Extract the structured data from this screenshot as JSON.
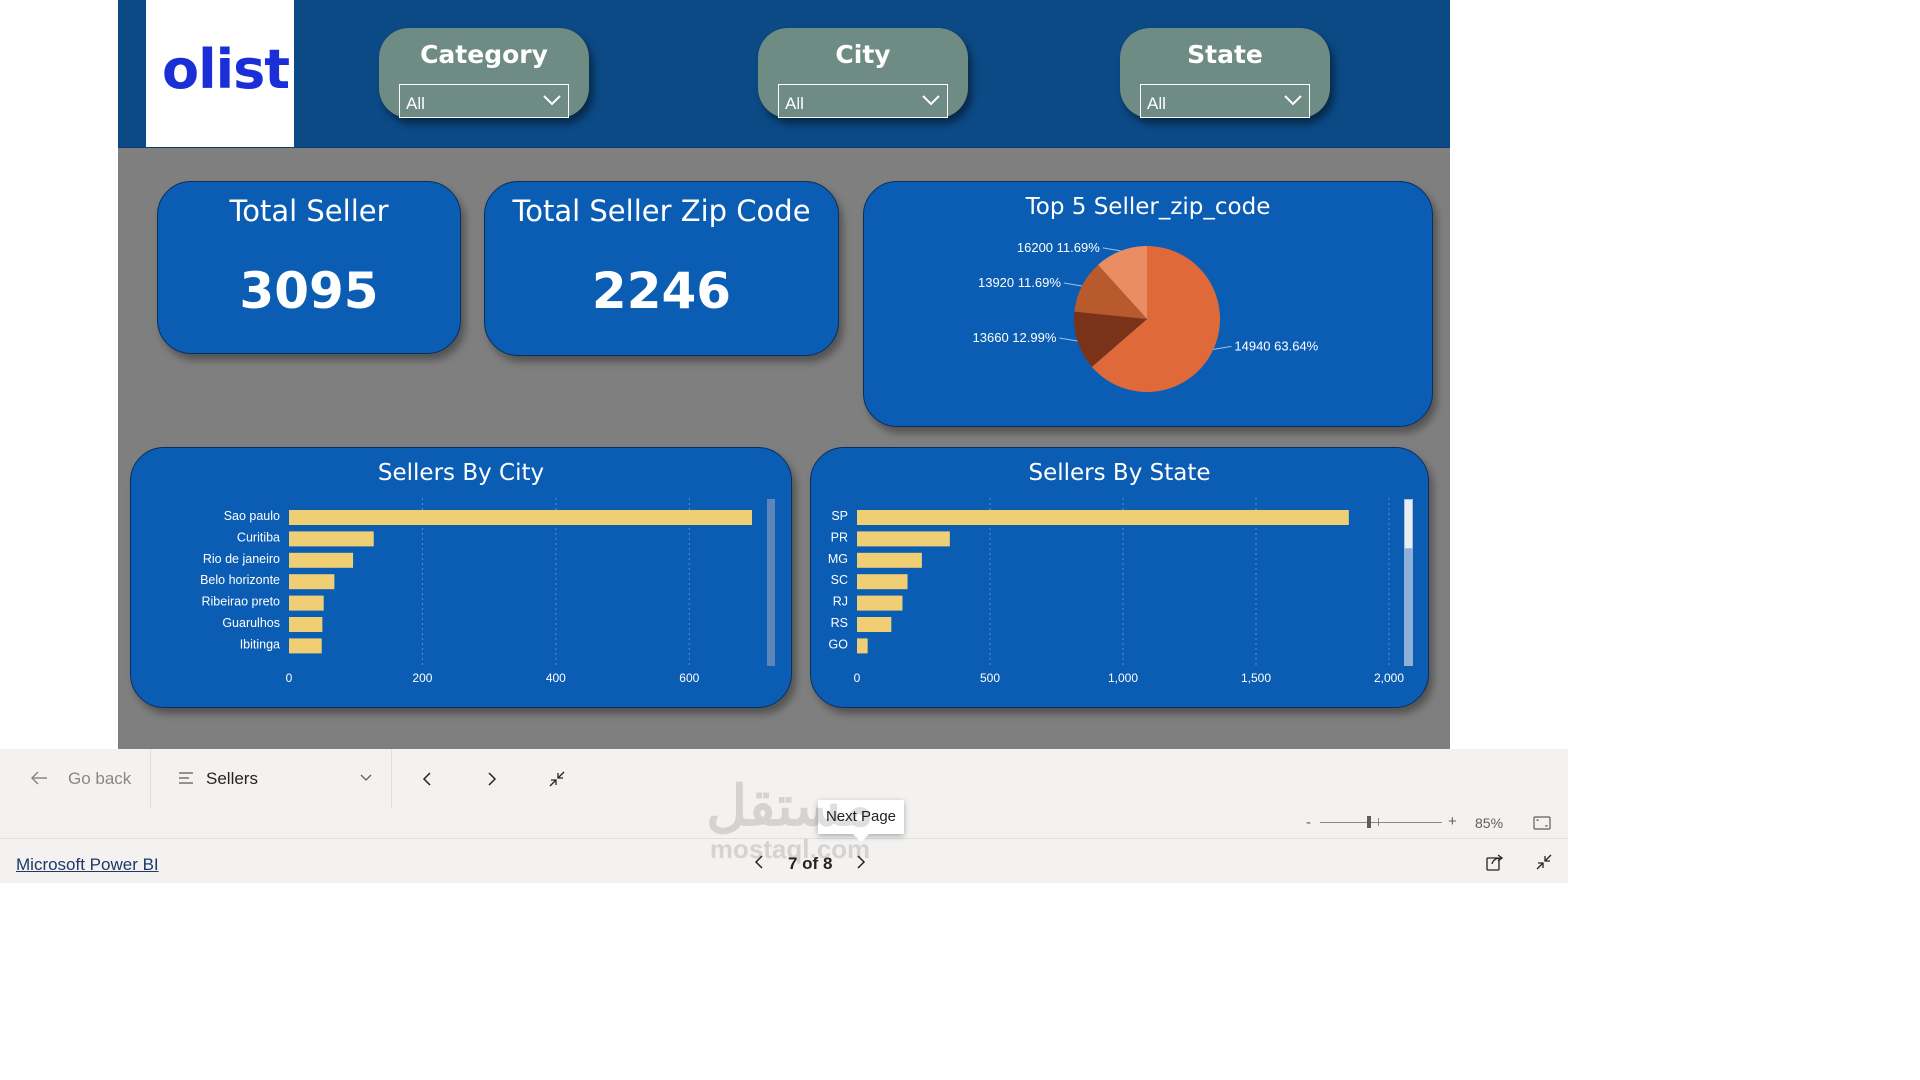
{
  "logo": {
    "text": "olist"
  },
  "slicers": [
    {
      "title": "Category",
      "value": "All"
    },
    {
      "title": "City",
      "value": "All"
    },
    {
      "title": "State",
      "value": "All"
    }
  ],
  "kpis": [
    {
      "title": "Total Seller",
      "value": "3095"
    },
    {
      "title": "Total Seller Zip Code",
      "value": "2246"
    }
  ],
  "charts": {
    "pie_title": "Top 5 Seller_zip_code",
    "city_title": "Sellers By City",
    "state_title": "Sellers By State"
  },
  "chart_data": [
    {
      "type": "pie",
      "title": "Top 5 Seller_zip_code",
      "labels": [
        "14940",
        "13660",
        "13920",
        "16200"
      ],
      "values": [
        63.64,
        12.99,
        11.69,
        11.69
      ],
      "value_labels": [
        "63.64%",
        "12.99%",
        "11.69%",
        "11.69%"
      ],
      "colors": [
        "#e0693a",
        "#7a3318",
        "#b85a2b",
        "#ea8d62"
      ]
    },
    {
      "type": "bar",
      "orientation": "horizontal",
      "title": "Sellers By City",
      "categories": [
        "Sao paulo",
        "Curitiba",
        "Rio de janeiro",
        "Belo horizonte",
        "Ribeirao preto",
        "Guarulhos",
        "Ibitinga"
      ],
      "values": [
        694,
        127,
        96,
        68,
        52,
        50,
        49
      ],
      "xlim": [
        0,
        700
      ],
      "xticks": [
        "0",
        "200",
        "400",
        "600"
      ],
      "grid": true,
      "bar_color": "#f0cf74"
    },
    {
      "type": "bar",
      "orientation": "horizontal",
      "title": "Sellers By State",
      "categories": [
        "SP",
        "PR",
        "MG",
        "SC",
        "RJ",
        "RS",
        "GO"
      ],
      "values": [
        1849,
        349,
        244,
        190,
        171,
        129,
        40
      ],
      "xlim": [
        0,
        2000
      ],
      "xticks": [
        "0",
        "500",
        "1,000",
        "1,500",
        "2,000"
      ],
      "grid": true,
      "bar_color": "#f0cf74"
    }
  ],
  "toolbar": {
    "go_back": "Go back",
    "page_select": "Sellers"
  },
  "tooltip": "Next Page",
  "zoom": {
    "minus": "-",
    "plus": "+",
    "value": "85%",
    "level": 0.85
  },
  "footer": {
    "link": "Microsoft Power BI",
    "pager": "7 of 8"
  },
  "watermark": {
    "text_ar": "مستقل",
    "text_en": "mostaql.com"
  }
}
